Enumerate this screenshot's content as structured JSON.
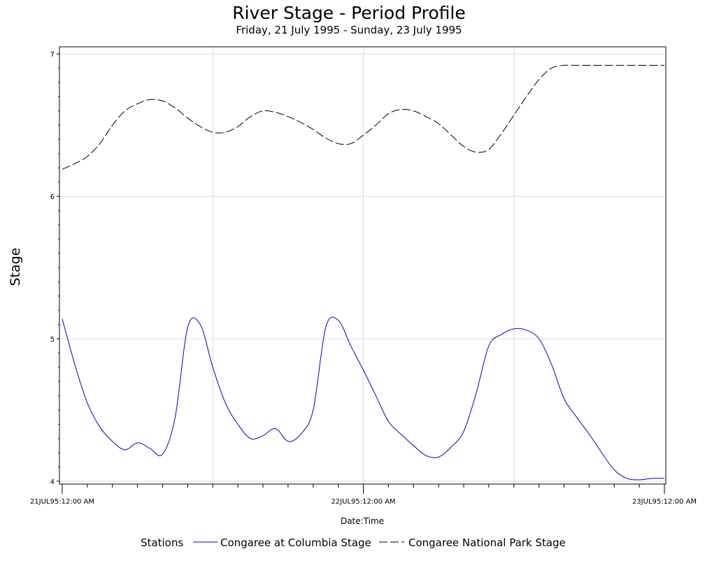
{
  "chart_data": {
    "type": "line",
    "title": "River Stage - Period Profile",
    "subtitle": "Friday, 21 July 1995 - Sunday, 23 July 1995",
    "xlabel": "Date:Time",
    "ylabel": "Stage",
    "xlim": [
      "21JUL95:00:00",
      "23JUL95:00:00"
    ],
    "ylim": [
      3.98,
      7.05
    ],
    "yticks": [
      4,
      5,
      6,
      7
    ],
    "xticks_major": [
      "21JUL95:12:00 AM",
      "22JUL95:12:00 AM",
      "23JUL95:12:00 AM"
    ],
    "grid": true,
    "legend_title": "Stations",
    "legend_position": "bottom",
    "series": [
      {
        "name": "Congaree at Columbia Stage",
        "color": "#0000cc",
        "style": "solid",
        "hours": [
          0,
          1,
          2,
          3,
          4,
          5,
          6,
          7,
          8,
          9,
          10,
          11,
          12,
          13,
          14,
          15,
          16,
          17,
          18,
          19,
          20,
          21,
          22,
          23,
          24,
          25,
          26,
          27,
          28,
          29,
          30,
          31,
          32,
          33,
          34,
          35,
          36,
          37,
          38,
          39,
          40,
          41,
          42,
          43,
          44,
          45,
          46,
          47,
          48
        ],
        "values": [
          5.14,
          4.82,
          4.55,
          4.38,
          4.28,
          4.22,
          4.27,
          4.23,
          4.19,
          4.45,
          5.08,
          5.1,
          4.8,
          4.55,
          4.4,
          4.3,
          4.32,
          4.37,
          4.28,
          4.33,
          4.5,
          5.08,
          5.13,
          4.95,
          4.78,
          4.6,
          4.42,
          4.33,
          4.25,
          4.18,
          4.17,
          4.24,
          4.35,
          4.62,
          4.95,
          5.03,
          5.07,
          5.06,
          5.0,
          4.82,
          4.58,
          4.45,
          4.33,
          4.2,
          4.08,
          4.02,
          4.01,
          4.02,
          4.02
        ]
      },
      {
        "name": "Congaree National Park Stage",
        "color": "#000000",
        "style": "dashed",
        "hours": [
          0,
          1,
          2,
          3,
          4,
          5,
          6,
          7,
          8,
          9,
          10,
          11,
          12,
          13,
          14,
          15,
          16,
          17,
          18,
          19,
          20,
          21,
          22,
          23,
          24,
          25,
          26,
          27,
          28,
          29,
          30,
          31,
          32,
          33,
          34,
          35,
          36,
          37,
          38,
          39,
          40,
          41,
          42,
          43,
          44,
          45,
          46,
          47,
          48
        ],
        "values": [
          6.19,
          6.23,
          6.28,
          6.37,
          6.5,
          6.6,
          6.65,
          6.68,
          6.67,
          6.62,
          6.55,
          6.49,
          6.45,
          6.45,
          6.49,
          6.56,
          6.6,
          6.59,
          6.56,
          6.52,
          6.47,
          6.41,
          6.37,
          6.37,
          6.43,
          6.5,
          6.58,
          6.61,
          6.6,
          6.56,
          6.51,
          6.43,
          6.35,
          6.31,
          6.33,
          6.44,
          6.57,
          6.7,
          6.82,
          6.9,
          6.92,
          6.92,
          6.92,
          6.92,
          6.92,
          6.92,
          6.92,
          6.92,
          6.92
        ]
      }
    ]
  }
}
